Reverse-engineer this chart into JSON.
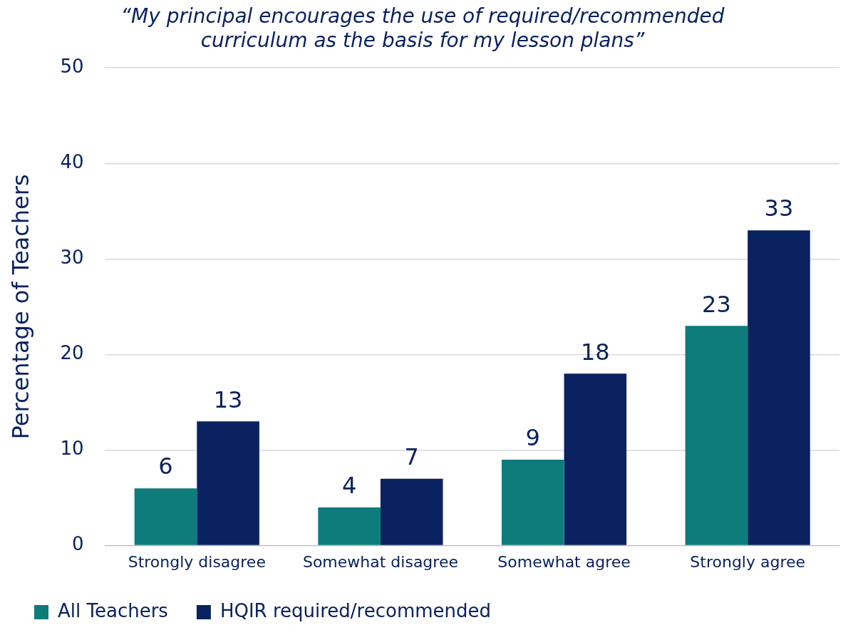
{
  "chart_data": {
    "type": "bar",
    "title": "“My principal encourages the use of required/recommended curriculum as the basis for my lesson plans”",
    "ylabel": "Percentage of Teachers",
    "categories": [
      "Strongly disagree",
      "Somewhat disagree",
      "Somewhat agree",
      "Strongly agree"
    ],
    "series": [
      {
        "name": "All Teachers",
        "color": "#0e7c7b",
        "values": [
          6,
          4,
          9,
          23
        ]
      },
      {
        "name": "HQIR required/recommended",
        "color": "#0b2260",
        "values": [
          13,
          7,
          18,
          33
        ]
      }
    ],
    "ylim": [
      0,
      50
    ],
    "yticks": [
      0,
      10,
      20,
      30,
      40,
      50
    ],
    "grid": "y",
    "legend": "bottom",
    "data_labels": true
  }
}
